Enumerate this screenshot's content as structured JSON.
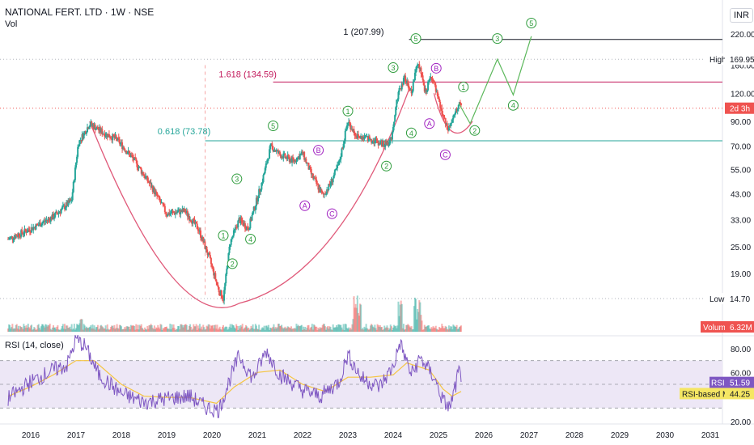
{
  "header": {
    "symbol_line": "NATIONAL FERT. LTD · 1W · NSE",
    "vol_label": "Vol",
    "rsi_title": "RSI (14, close)",
    "currency": "INR"
  },
  "colors": {
    "bull": "#26a69a",
    "bear": "#ef5350",
    "cup": "#e05a7a",
    "fib1618": "#c2185b",
    "fib0618": "#26a69a",
    "top_line": "#131722",
    "wave_green": "#2e9c3c",
    "wave_purple": "#a020c0",
    "rsi": "#7e57c2",
    "rsi_ma": "#f5c542",
    "rsi_band": "#ede7f6",
    "current_price": "#ef5350"
  },
  "chart_data": [
    {
      "type": "candlestick",
      "title": "NATIONAL FERT. LTD · 1W · NSE",
      "x_ticks": [
        "2016",
        "2017",
        "2018",
        "2019",
        "2020",
        "2021",
        "2022",
        "2023",
        "2024",
        "2025",
        "2026",
        "2027",
        "2028",
        "2029",
        "2030",
        "2031"
      ],
      "y_scale": "log",
      "y_ticks": [
        "220.00",
        "160.00",
        "120.00",
        "90.00",
        "70.00",
        "55.00",
        "43.00",
        "33.00",
        "25.00",
        "19.00",
        "14.70"
      ],
      "y_tick_values": [
        220,
        160,
        120,
        90,
        70,
        55,
        43,
        33,
        25,
        19,
        14.7
      ],
      "price_path": [
        [
          2015.5,
          27
        ],
        [
          2016.0,
          30
        ],
        [
          2016.5,
          34
        ],
        [
          2016.9,
          40
        ],
        [
          2017.05,
          72
        ],
        [
          2017.3,
          88
        ],
        [
          2017.6,
          80
        ],
        [
          2017.9,
          75
        ],
        [
          2018.3,
          60
        ],
        [
          2018.7,
          45
        ],
        [
          2019.0,
          35
        ],
        [
          2019.4,
          36
        ],
        [
          2019.7,
          30
        ],
        [
          2019.95,
          22
        ],
        [
          2020.15,
          16
        ],
        [
          2020.25,
          14.7
        ],
        [
          2020.4,
          26
        ],
        [
          2020.6,
          33
        ],
        [
          2020.8,
          30
        ],
        [
          2021.1,
          48
        ],
        [
          2021.3,
          70
        ],
        [
          2021.5,
          64
        ],
        [
          2021.8,
          60
        ],
        [
          2022.0,
          65
        ],
        [
          2022.2,
          52
        ],
        [
          2022.45,
          42
        ],
        [
          2022.6,
          47
        ],
        [
          2022.8,
          58
        ],
        [
          2023.0,
          90
        ],
        [
          2023.2,
          77
        ],
        [
          2023.5,
          75
        ],
        [
          2023.8,
          71
        ],
        [
          2023.95,
          74
        ],
        [
          2024.1,
          118
        ],
        [
          2024.25,
          140
        ],
        [
          2024.4,
          120
        ],
        [
          2024.55,
          170
        ],
        [
          2024.7,
          120
        ],
        [
          2024.85,
          145
        ],
        [
          2025.0,
          110
        ],
        [
          2025.1,
          95
        ],
        [
          2025.2,
          82
        ],
        [
          2025.35,
          95
        ],
        [
          2025.45,
          108
        ],
        [
          2025.5,
          103
        ]
      ],
      "levels": [
        {
          "label": "1 (207.99)",
          "value": 207.99
        },
        {
          "label": "1.618 (134.59)",
          "value": 134.59
        },
        {
          "label": "0.618 (73.78)",
          "value": 73.78
        }
      ],
      "price_tags": [
        {
          "label": "High",
          "value": "169.95"
        },
        {
          "label": "",
          "value": "2d 3h"
        },
        {
          "label": "Low",
          "value": "14.70"
        }
      ],
      "projection": [
        [
          2025.45,
          108
        ],
        [
          2025.7,
          88
        ],
        [
          2026.3,
          170
        ],
        [
          2026.65,
          118
        ],
        [
          2027.05,
          215
        ]
      ],
      "wave_labels": [
        {
          "t": "1",
          "x": 2020.25,
          "y": 28,
          "c": "g"
        },
        {
          "t": "2",
          "x": 2020.45,
          "y": 21,
          "c": "g"
        },
        {
          "t": "3",
          "x": 2020.55,
          "y": 50,
          "c": "g"
        },
        {
          "t": "4",
          "x": 2020.85,
          "y": 27,
          "c": "g"
        },
        {
          "t": "5",
          "x": 2021.35,
          "y": 86,
          "c": "g"
        },
        {
          "t": "A",
          "x": 2022.05,
          "y": 38,
          "c": "p"
        },
        {
          "t": "B",
          "x": 2022.35,
          "y": 67,
          "c": "p"
        },
        {
          "t": "C",
          "x": 2022.65,
          "y": 35,
          "c": "p"
        },
        {
          "t": "1",
          "x": 2023.0,
          "y": 100,
          "c": "g"
        },
        {
          "t": "2",
          "x": 2023.85,
          "y": 57,
          "c": "g"
        },
        {
          "t": "3",
          "x": 2024.0,
          "y": 156,
          "c": "g"
        },
        {
          "t": "4",
          "x": 2024.4,
          "y": 80,
          "c": "g"
        },
        {
          "t": "5",
          "x": 2024.5,
          "y": 210,
          "c": "g"
        },
        {
          "t": "A",
          "x": 2024.8,
          "y": 88,
          "c": "p"
        },
        {
          "t": "B",
          "x": 2024.95,
          "y": 155,
          "c": "p"
        },
        {
          "t": "C",
          "x": 2025.15,
          "y": 64,
          "c": "p"
        },
        {
          "t": "1",
          "x": 2025.55,
          "y": 128,
          "c": "g"
        },
        {
          "t": "2",
          "x": 2025.8,
          "y": 82,
          "c": "g"
        },
        {
          "t": "3",
          "x": 2026.3,
          "y": 210,
          "c": "g"
        },
        {
          "t": "4",
          "x": 2026.65,
          "y": 106,
          "c": "g"
        },
        {
          "t": "5",
          "x": 2027.05,
          "y": 246,
          "c": "g"
        }
      ]
    },
    {
      "type": "bar",
      "title": "Vol",
      "last_value": "6.32M",
      "series_label": "Volume"
    },
    {
      "type": "line",
      "title": "RSI (14, close)",
      "y_ticks": [
        "80.00",
        "60.00",
        "20.00"
      ],
      "y_range": [
        20,
        95
      ],
      "bands": [
        70,
        50,
        30
      ],
      "series": [
        {
          "name": "RSI",
          "last_value": "51.59",
          "points": [
            [
              2015.5,
              38
            ],
            [
              2016.0,
              52
            ],
            [
              2016.5,
              62
            ],
            [
              2016.8,
              66
            ],
            [
              2017.0,
              88
            ],
            [
              2017.2,
              82
            ],
            [
              2017.5,
              58
            ],
            [
              2018.0,
              42
            ],
            [
              2018.5,
              35
            ],
            [
              2019.0,
              38
            ],
            [
              2019.5,
              40
            ],
            [
              2019.9,
              30
            ],
            [
              2020.15,
              28
            ],
            [
              2020.4,
              55
            ],
            [
              2020.6,
              74
            ],
            [
              2020.9,
              55
            ],
            [
              2021.2,
              78
            ],
            [
              2021.5,
              58
            ],
            [
              2022.0,
              45
            ],
            [
              2022.4,
              40
            ],
            [
              2022.8,
              52
            ],
            [
              2023.0,
              75
            ],
            [
              2023.3,
              55
            ],
            [
              2023.7,
              48
            ],
            [
              2024.0,
              65
            ],
            [
              2024.15,
              85
            ],
            [
              2024.4,
              58
            ],
            [
              2024.6,
              72
            ],
            [
              2024.9,
              56
            ],
            [
              2025.1,
              36
            ],
            [
              2025.25,
              30
            ],
            [
              2025.4,
              52
            ],
            [
              2025.45,
              62
            ],
            [
              2025.5,
              52
            ]
          ]
        },
        {
          "name": "RSI-based MA",
          "last_value": "44.25",
          "points": [
            [
              2015.5,
              40
            ],
            [
              2016.0,
              48
            ],
            [
              2016.5,
              58
            ],
            [
              2017.0,
              70
            ],
            [
              2017.4,
              70
            ],
            [
              2018.0,
              50
            ],
            [
              2018.5,
              40
            ],
            [
              2019.0,
              39
            ],
            [
              2019.5,
              39
            ],
            [
              2020.1,
              34
            ],
            [
              2020.5,
              48
            ],
            [
              2021.0,
              60
            ],
            [
              2021.5,
              62
            ],
            [
              2022.0,
              50
            ],
            [
              2022.5,
              44
            ],
            [
              2023.0,
              56
            ],
            [
              2023.5,
              56
            ],
            [
              2024.0,
              58
            ],
            [
              2024.3,
              68
            ],
            [
              2024.8,
              62
            ],
            [
              2025.1,
              46
            ],
            [
              2025.3,
              40
            ],
            [
              2025.5,
              44
            ]
          ]
        }
      ]
    }
  ]
}
